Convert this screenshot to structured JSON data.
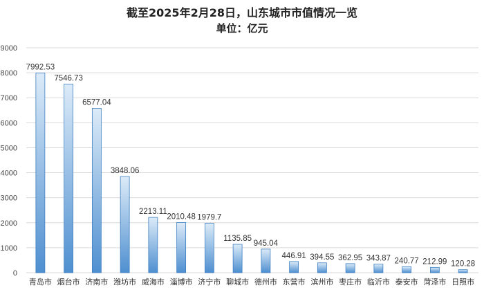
{
  "chart_data": {
    "type": "bar",
    "title": "截至2025年2月28日，山东城市市值情况一览",
    "subtitle": "单位：亿元",
    "xlabel": "",
    "ylabel": "",
    "ylim": [
      0,
      9000
    ],
    "yticks": [
      0,
      1000,
      2000,
      3000,
      4000,
      5000,
      6000,
      7000,
      8000,
      9000
    ],
    "grid": true,
    "legend": "none",
    "categories": [
      "青岛市",
      "烟台市",
      "济南市",
      "潍坊市",
      "威海市",
      "淄博市",
      "济宁市",
      "聊城市",
      "德州市",
      "东营市",
      "滨州市",
      "枣庄市",
      "临沂市",
      "泰安市",
      "菏泽市",
      "日照市"
    ],
    "values": [
      7992.53,
      7546.73,
      6577.04,
      3848.06,
      2213.11,
      2010.48,
      1979.7,
      1135.85,
      945.04,
      446.91,
      394.55,
      362.95,
      343.87,
      240.77,
      212.99,
      120.28
    ],
    "value_labels": [
      "7992.53",
      "7546.73",
      "6577.04",
      "3848.06",
      "2213.11",
      "2010.48",
      "1979.7",
      "1135.85",
      "945.04",
      "446.91",
      "394.55",
      "362.95",
      "343.87",
      "240.77",
      "212.99",
      "120.28"
    ],
    "colors": {
      "bar_light": "#dcebf8",
      "bar_dark": "#4e8fd0",
      "bar_edge": "#3f7fc2",
      "grid": "#d9d9d9"
    }
  }
}
